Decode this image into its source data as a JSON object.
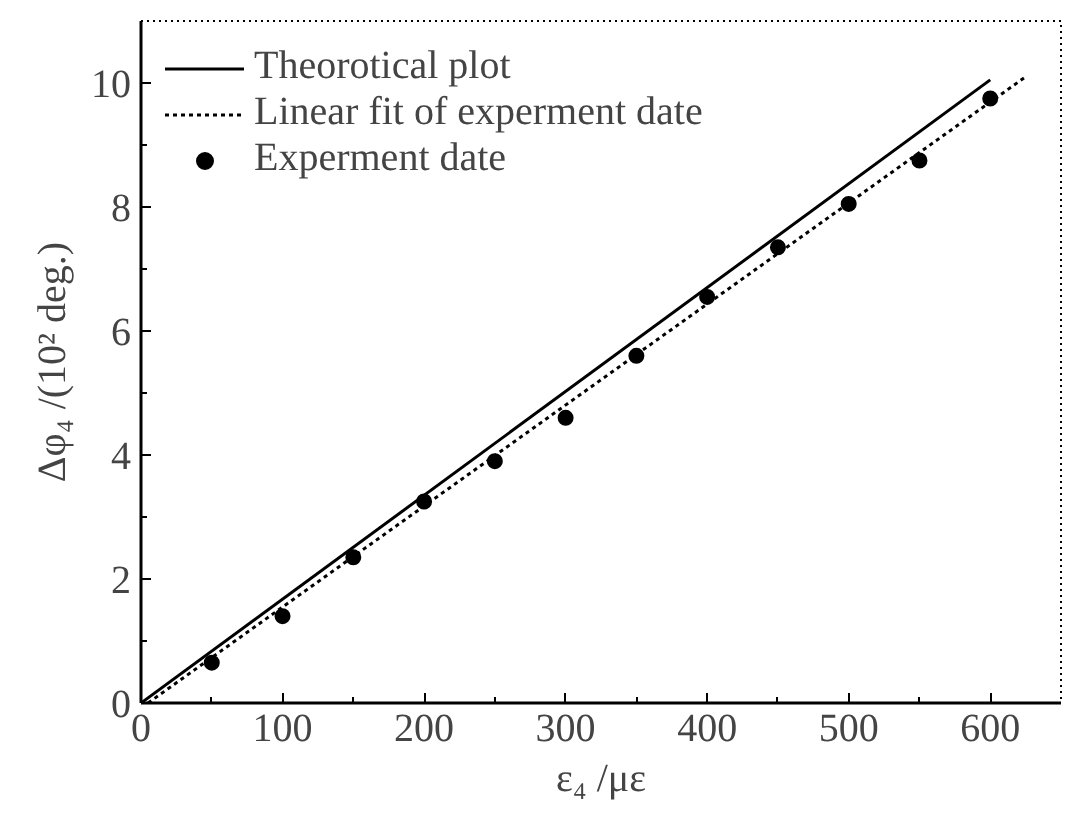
{
  "chart_data": {
    "type": "line",
    "xlabel": "ε₄ /με",
    "ylabel": "Δφ₄ /(10² deg.)",
    "xlim": [
      0,
      650
    ],
    "ylim": [
      0,
      11
    ],
    "xticks": [
      0,
      100,
      200,
      300,
      400,
      500,
      600
    ],
    "yticks": [
      0,
      2,
      4,
      6,
      8,
      10
    ],
    "grid": false,
    "legend": "top left",
    "series": [
      {
        "name": "Theorotical plot",
        "line_style": "solid",
        "color": "#000000",
        "x": [
          0,
          600
        ],
        "values": [
          0,
          10.05
        ]
      },
      {
        "name": "Linear fit of experment date",
        "line_style": "dotted",
        "color": "#000000",
        "x": [
          5,
          625
        ],
        "values": [
          0,
          10.1
        ]
      },
      {
        "name": "Experment date",
        "type": "scatter",
        "marker": "circle",
        "color": "#000000",
        "x": [
          50,
          100,
          150,
          200,
          250,
          300,
          350,
          400,
          450,
          500,
          550,
          600
        ],
        "values": [
          0.65,
          1.4,
          2.35,
          3.25,
          3.9,
          4.6,
          5.6,
          6.55,
          7.35,
          8.05,
          8.75,
          9.75
        ]
      }
    ]
  }
}
